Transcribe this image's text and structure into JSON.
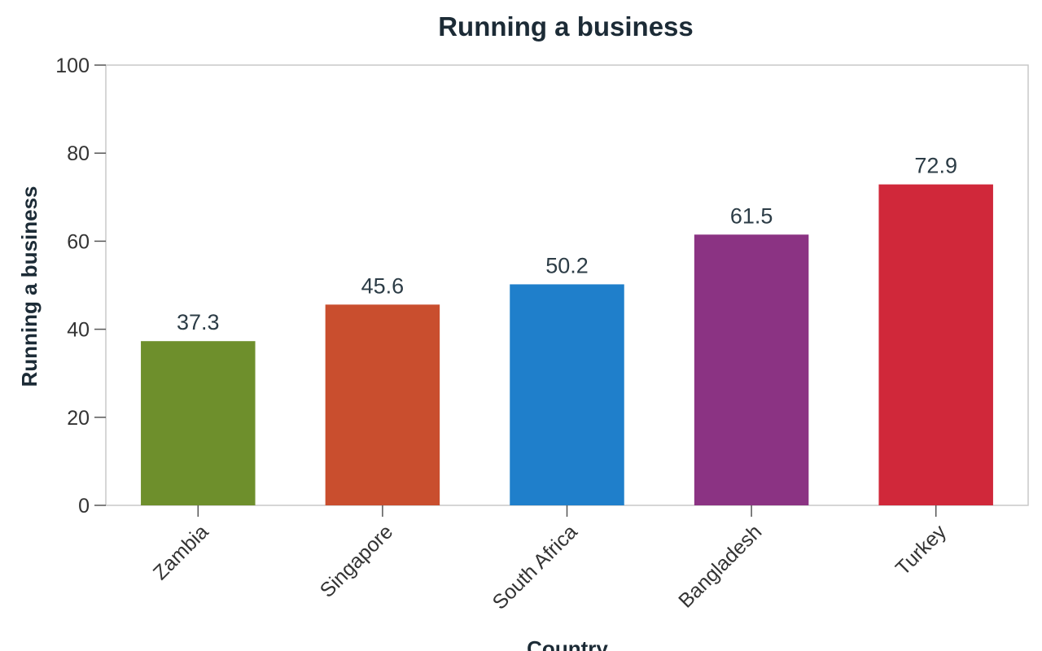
{
  "chart_data": {
    "type": "bar",
    "title": "Running a business",
    "xlabel": "Country",
    "ylabel": "Running a business",
    "categories": [
      "Zambia",
      "Singapore",
      "South Africa",
      "Bangladesh",
      "Turkey"
    ],
    "values": [
      37.3,
      45.6,
      50.2,
      61.5,
      72.9
    ],
    "value_labels": [
      "37.3",
      "45.6",
      "50.2",
      "61.5",
      "72.9"
    ],
    "bar_colors": [
      "#6e8f2c",
      "#c94e2e",
      "#1f7fcb",
      "#8b3383",
      "#d0283a"
    ],
    "ylim": [
      0,
      100
    ],
    "yticks": [
      0,
      20,
      40,
      60,
      80,
      100
    ],
    "ytick_labels": [
      "0",
      "20",
      "40",
      "60",
      "80",
      "100"
    ],
    "grid": false,
    "legend": "none"
  }
}
